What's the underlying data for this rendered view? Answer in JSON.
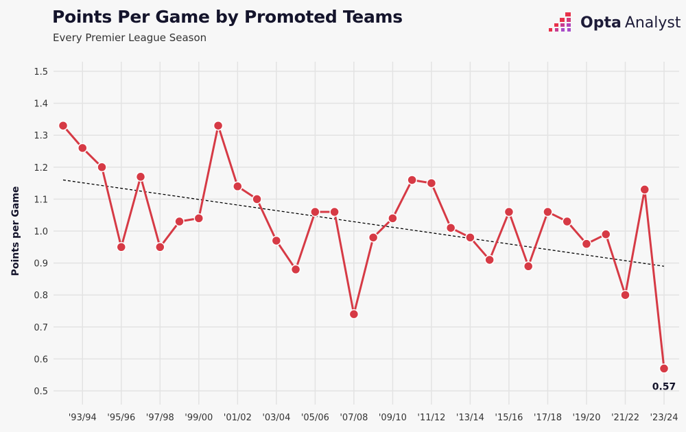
{
  "header": {
    "title": "Points Per Game by Promoted Teams",
    "subtitle": "Every Premier League Season"
  },
  "logo": {
    "text_bold": "Opta",
    "text_light": "Analyst"
  },
  "colors": {
    "line": "#d63a45",
    "trend": "#000000",
    "grid": "#e3e3e3",
    "background": "#f7f7f7"
  },
  "chart_data": {
    "type": "line",
    "title": "Points Per Game by Promoted Teams",
    "subtitle": "Every Premier League Season",
    "xlabel": "",
    "ylabel": "Points per Game",
    "ylim": [
      0.5,
      1.5
    ],
    "yticks": [
      "0.5",
      "0.6",
      "0.7",
      "0.8",
      "0.9",
      "1.0",
      "1.1",
      "1.2",
      "1.3",
      "1.4",
      "1.5"
    ],
    "x": [
      "92/93",
      "93/94",
      "94/95",
      "95/96",
      "96/97",
      "97/98",
      "98/99",
      "99/00",
      "00/01",
      "01/02",
      "02/03",
      "03/04",
      "04/05",
      "05/06",
      "06/07",
      "07/08",
      "08/09",
      "09/10",
      "10/11",
      "11/12",
      "12/13",
      "13/14",
      "14/15",
      "15/16",
      "16/17",
      "17/18",
      "18/19",
      "19/20",
      "20/21",
      "21/22",
      "22/23",
      "23/24"
    ],
    "xtick_labels": [
      "'93/94",
      "'95/96",
      "'97/98",
      "'99/00",
      "'01/02",
      "'03/04",
      "'05/06",
      "'07/08",
      "'09/10",
      "'11/12",
      "'13/14",
      "'15/16",
      "'17/18",
      "'19/20",
      "'21/22",
      "'23/24"
    ],
    "series": [
      {
        "values": [
          1.33,
          1.26,
          1.2,
          0.95,
          1.17,
          0.95,
          1.03,
          1.04,
          1.33,
          1.14,
          1.1,
          0.97,
          0.88,
          1.06,
          1.06,
          0.74,
          0.98,
          1.04,
          1.16,
          1.15,
          1.01,
          0.98,
          0.91,
          1.06,
          0.89,
          1.06,
          1.03,
          0.96,
          0.99,
          0.8,
          1.13,
          0.57
        ]
      }
    ],
    "trendline": {
      "start": 1.16,
      "end": 0.89,
      "style": "dashed"
    },
    "annotations": [
      {
        "x": "23/24",
        "text": "0.57"
      }
    ],
    "grid": true
  }
}
